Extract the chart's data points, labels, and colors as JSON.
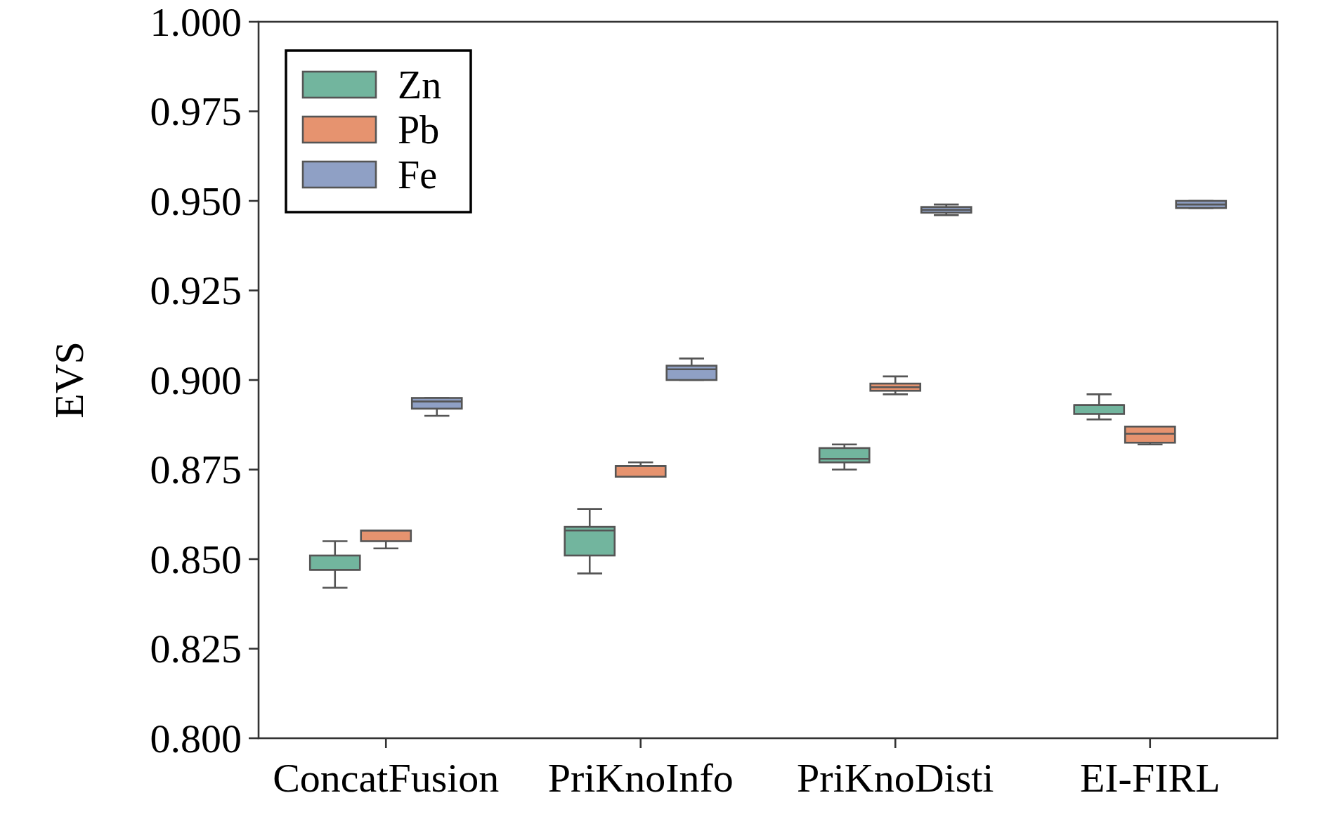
{
  "chart_data": {
    "type": "box",
    "ylabel": "EVS",
    "categories": [
      "ConcatFusion",
      "PriKnoInfo",
      "PriKnoDisti",
      "EI-FIRL"
    ],
    "series": [
      {
        "name": "Zn",
        "color": "#72b59e",
        "boxes": [
          {
            "low": 0.842,
            "q1": 0.847,
            "median": 0.847,
            "q3": 0.851,
            "high": 0.855
          },
          {
            "low": 0.846,
            "q1": 0.851,
            "median": 0.858,
            "q3": 0.859,
            "high": 0.864
          },
          {
            "low": 0.875,
            "q1": 0.877,
            "median": 0.878,
            "q3": 0.881,
            "high": 0.882
          },
          {
            "low": 0.889,
            "q1": 0.8905,
            "median": 0.893,
            "q3": 0.893,
            "high": 0.896
          }
        ]
      },
      {
        "name": "Pb",
        "color": "#e6936f",
        "boxes": [
          {
            "low": 0.853,
            "q1": 0.855,
            "median": 0.858,
            "q3": 0.858,
            "high": 0.858
          },
          {
            "low": 0.873,
            "q1": 0.873,
            "median": 0.876,
            "q3": 0.876,
            "high": 0.877
          },
          {
            "low": 0.896,
            "q1": 0.897,
            "median": 0.898,
            "q3": 0.899,
            "high": 0.901
          },
          {
            "low": 0.882,
            "q1": 0.8825,
            "median": 0.885,
            "q3": 0.887,
            "high": 0.887
          }
        ]
      },
      {
        "name": "Fe",
        "color": "#8fa0c5",
        "boxes": [
          {
            "low": 0.89,
            "q1": 0.892,
            "median": 0.894,
            "q3": 0.895,
            "high": 0.895
          },
          {
            "low": 0.9,
            "q1": 0.9,
            "median": 0.903,
            "q3": 0.904,
            "high": 0.906
          },
          {
            "low": 0.946,
            "q1": 0.9467,
            "median": 0.9475,
            "q3": 0.9483,
            "high": 0.949
          },
          {
            "low": 0.948,
            "q1": 0.948,
            "median": 0.949,
            "q3": 0.95,
            "high": 0.95
          }
        ]
      }
    ],
    "ylim": [
      0.8,
      1.0
    ],
    "yticks": [
      {
        "value": 0.8,
        "label": "0.800"
      },
      0.825,
      {
        "value": 0.85,
        "label": "0.850"
      },
      0.875,
      {
        "value": 0.9,
        "label": "0.900"
      },
      0.925,
      {
        "value": 0.95,
        "label": "0.950"
      },
      0.975,
      {
        "value": 1.0,
        "label": "1.000"
      }
    ],
    "legend": "top left"
  }
}
